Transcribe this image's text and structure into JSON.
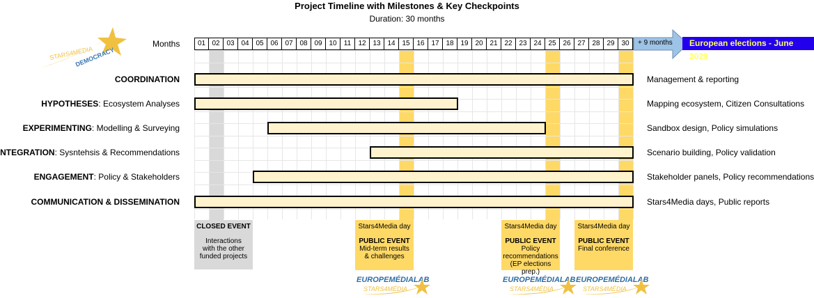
{
  "title": "Project Timeline with Milestones & Key Checkpoints",
  "subtitle": "Duration: 30 months",
  "logo": {
    "text": "STARS4MEDIA DEMOCRACY"
  },
  "months_label": "Months",
  "months": [
    "01",
    "02",
    "03",
    "04",
    "05",
    "06",
    "07",
    "08",
    "09",
    "10",
    "11",
    "12",
    "13",
    "14",
    "15",
    "16",
    "17",
    "18",
    "19",
    "20",
    "21",
    "22",
    "23",
    "24",
    "25",
    "26",
    "27",
    "28",
    "29",
    "30"
  ],
  "extension": {
    "label": "+ 9 months",
    "target": "European elections - June 2029",
    "arrow_color": "#9dc3e6",
    "banner_color": "#2200ee",
    "banner_text_color": "#ffff66"
  },
  "highlight_months": [
    {
      "month": 2,
      "color": "#d9d9d9"
    },
    {
      "month": 15,
      "color": "#ffd966"
    },
    {
      "month": 25,
      "color": "#ffd966"
    },
    {
      "month": 30,
      "color": "#ffd966"
    }
  ],
  "workpackages": [
    {
      "bold": "COORDINATION",
      "rest": "",
      "start": 1,
      "end": 30,
      "desc": "Management & reporting"
    },
    {
      "bold": "HYPOTHESES",
      "rest": ": Ecosystem Analyses",
      "start": 1,
      "end": 18,
      "desc": "Mapping ecosystem, Citizen Consultations"
    },
    {
      "bold": "EXPERIMENTING",
      "rest": ": Modelling & Surveying",
      "start": 6,
      "end": 24,
      "desc": "Sandbox design, Policy simulations"
    },
    {
      "bold": "INTEGRATION",
      "rest": ": Sysntehsis & Recommendations",
      "start": 13,
      "end": 30,
      "desc": "Scenario building, Policy validation"
    },
    {
      "bold": "ENGAGEMENT",
      "rest": ": Policy & Stakeholders",
      "start": 5,
      "end": 30,
      "desc": "Stakeholder panels, Policy recommendations"
    },
    {
      "bold": "COMMUNICATION & DISSEMINATION",
      "rest": "",
      "start": 1,
      "end": 30,
      "desc": "Stars4Media days, Public reports"
    }
  ],
  "bar_color": "#fff2cc",
  "events": [
    {
      "month": 2,
      "top": "",
      "head": "CLOSED EVENT",
      "lines": [
        "Interactions",
        "with the other",
        "funded projects"
      ],
      "color": "#d9d9d9",
      "logo": ""
    },
    {
      "month": 15,
      "top": "Stars4Media day",
      "head": "PUBLIC EVENT",
      "lines": [
        "Mid-term results",
        "& challenges"
      ],
      "color": "#ffd966",
      "logo": "EUROPEMÉDIALAB STARS4MÉDIA"
    },
    {
      "month": 25,
      "top": "Stars4Media day",
      "head": "PUBLIC EVENT",
      "lines": [
        "Policy",
        "recommendations",
        "(EP elections prep.)"
      ],
      "color": "#ffd966",
      "logo": "EUROPEMÉDIALAB STARS4MÉDIA"
    },
    {
      "month": 30,
      "top": "Stars4Media day",
      "head": "PUBLIC EVENT",
      "lines": [
        "Final conference"
      ],
      "color": "#ffd966",
      "logo": "EUROPEMÉDIALAB STARS4MÉDIA"
    }
  ]
}
